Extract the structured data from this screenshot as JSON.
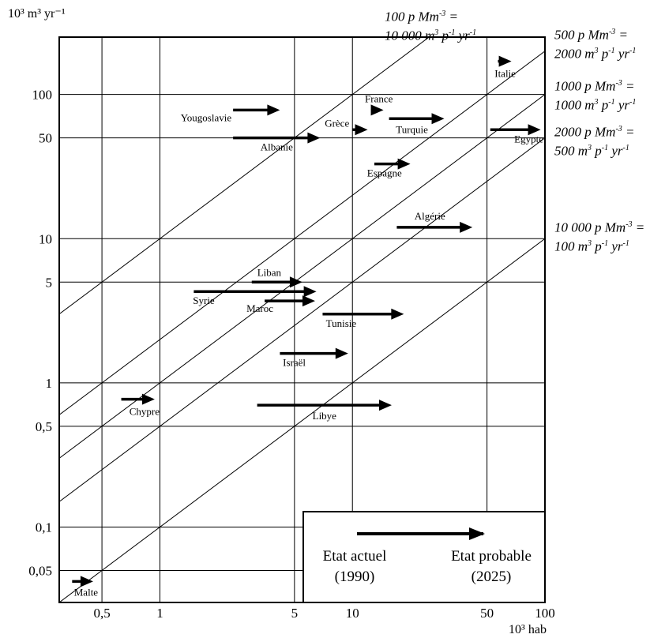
{
  "chart_data": {
    "type": "scatter",
    "x_scale": "log",
    "y_scale": "log",
    "xlim": [
      0.3,
      100
    ],
    "ylim": [
      0.03,
      250
    ],
    "xlabel": "10³ hab",
    "ylabel": "10³ m³ yr⁻¹",
    "grid": true,
    "x_ticks": [
      {
        "v": 0.5,
        "label": "0,5"
      },
      {
        "v": 1,
        "label": "1"
      },
      {
        "v": 5,
        "label": "5"
      },
      {
        "v": 10,
        "label": "10"
      },
      {
        "v": 50,
        "label": "50"
      },
      {
        "v": 100,
        "label": "100"
      }
    ],
    "y_ticks": [
      {
        "v": 0.05,
        "label": "0,05"
      },
      {
        "v": 0.1,
        "label": "0,1"
      },
      {
        "v": 0.5,
        "label": "0,5"
      },
      {
        "v": 1,
        "label": "1"
      },
      {
        "v": 5,
        "label": "5"
      },
      {
        "v": 10,
        "label": "10"
      },
      {
        "v": 50,
        "label": "50"
      },
      {
        "v": 100,
        "label": "100"
      }
    ],
    "density_lines": [
      {
        "k": 10,
        "line1": "100 p Mm⁻³ =",
        "line2": "10 000 m³ p⁻¹ yr⁻¹"
      },
      {
        "k": 2,
        "line1": "500 p Mm⁻³ =",
        "line2": "2000 m³ p⁻¹ yr⁻¹"
      },
      {
        "k": 1,
        "line1": "1000 p Mm⁻³ =",
        "line2": "1000 m³ p⁻¹ yr⁻¹"
      },
      {
        "k": 0.5,
        "line1": "2000 p Mm⁻³ =",
        "line2": "500 m³ p⁻¹ yr⁻¹"
      },
      {
        "k": 0.1,
        "line1": "10 000 p Mm⁻³ =",
        "line2": "100 m³ p⁻¹ yr⁻¹"
      }
    ],
    "countries": [
      {
        "name": "Italie",
        "y": 170,
        "x1990": 57,
        "x2025": 67
      },
      {
        "name": "France",
        "y": 78,
        "x1990": 12.5,
        "x2025": 14.5
      },
      {
        "name": "Yougoslavie",
        "y": 78,
        "x1990": 2.4,
        "x2025": 4.2
      },
      {
        "name": "Turquie",
        "y": 68,
        "x1990": 15.5,
        "x2025": 30
      },
      {
        "name": "Grèce",
        "y": 57,
        "x1990": 10,
        "x2025": 12
      },
      {
        "name": "Egypte",
        "y": 57,
        "x1990": 52,
        "x2025": 95
      },
      {
        "name": "Albanie",
        "y": 50,
        "x1990": 2.4,
        "x2025": 6.8
      },
      {
        "name": "Espagne",
        "y": 33,
        "x1990": 13,
        "x2025": 20
      },
      {
        "name": "Algérie",
        "y": 12,
        "x1990": 17,
        "x2025": 42
      },
      {
        "name": "Liban",
        "y": 5,
        "x1990": 3,
        "x2025": 5.5
      },
      {
        "name": "Syrie",
        "y": 4.3,
        "x1990": 1.5,
        "x2025": 6.5
      },
      {
        "name": "Maroc",
        "y": 3.7,
        "x1990": 3.5,
        "x2025": 6.4
      },
      {
        "name": "Tunisie",
        "y": 3,
        "x1990": 7,
        "x2025": 18.5
      },
      {
        "name": "Israël",
        "y": 1.6,
        "x1990": 4.2,
        "x2025": 9.5
      },
      {
        "name": "Chypre",
        "y": 0.77,
        "x1990": 0.63,
        "x2025": 0.94
      },
      {
        "name": "Libye",
        "y": 0.7,
        "x1990": 3.2,
        "x2025": 16
      },
      {
        "name": "Malte",
        "y": 0.042,
        "x1990": 0.35,
        "x2025": 0.45
      }
    ],
    "legend": {
      "start_label": "Etat actuel",
      "start_year": "(1990)",
      "end_label": "Etat probable",
      "end_year": "(2025)"
    }
  }
}
